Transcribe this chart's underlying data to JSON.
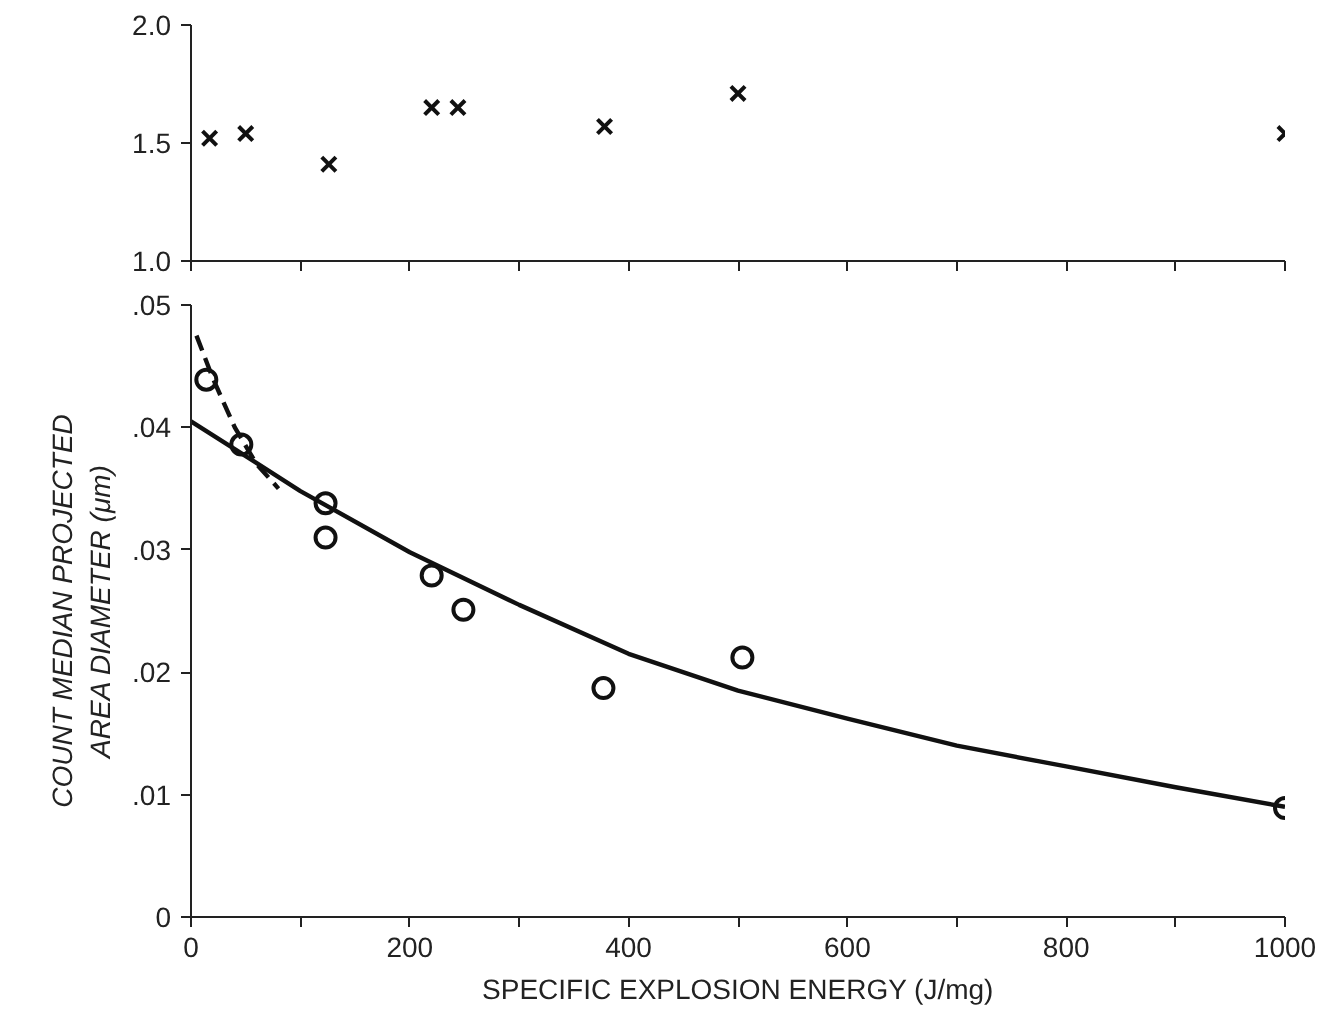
{
  "chart_data": [
    {
      "type": "scatter",
      "xlim": [
        0,
        1000
      ],
      "ylim": [
        1.0,
        2.0
      ],
      "xticks": [
        {
          "value": 0,
          "label": null
        },
        {
          "value": 100,
          "label": null
        },
        {
          "value": 200,
          "label": null
        },
        {
          "value": 300,
          "label": null
        },
        {
          "value": 400,
          "label": null
        },
        {
          "value": 500,
          "label": null
        },
        {
          "value": 600,
          "label": null
        },
        {
          "value": 700,
          "label": null
        },
        {
          "value": 800,
          "label": null
        },
        {
          "value": 900,
          "label": null
        },
        {
          "value": 1000,
          "label": null
        }
      ],
      "yticks": [
        {
          "value": 1.0,
          "label": "1.0"
        },
        {
          "value": 1.5,
          "label": "1.5"
        },
        {
          "value": 2.0,
          "label": "2.0"
        }
      ],
      "tick_labels": "y",
      "grid": false,
      "marker": "cross",
      "series": [
        {
          "color": "#111111",
          "x": [
            17,
            50,
            126,
            220,
            244,
            378,
            500,
            1000
          ],
          "values": [
            1.52,
            1.54,
            1.41,
            1.65,
            1.65,
            1.57,
            1.71,
            1.54
          ]
        }
      ]
    },
    {
      "type": "scatter",
      "xlim": [
        0,
        1000
      ],
      "ylim": [
        0,
        0.05
      ],
      "xlabel": "SPECIFIC EXPLOSION ENERGY (J/mg)",
      "ylabel": "COUNT MEDIAN PROJECTED AREA DIAMETER (μm)",
      "xticks": [
        0,
        {
          "value": 100,
          "label": null
        },
        200,
        {
          "value": 300,
          "label": null
        },
        400,
        {
          "value": 500,
          "label": null
        },
        600,
        {
          "value": 700,
          "label": null
        },
        800,
        {
          "value": 900,
          "label": null
        },
        1000
      ],
      "yticks": [
        0,
        {
          "value": 0.01,
          "label": ".01"
        },
        {
          "value": 0.02,
          "label": ".02"
        },
        {
          "value": 0.03,
          "label": ".03"
        },
        {
          "value": 0.04,
          "label": ".04"
        },
        {
          "value": 0.05,
          "label": ".05"
        }
      ],
      "grid": false,
      "marker": "circle",
      "series": [
        {
          "type": "scatter",
          "color": "#111111",
          "x": [
            14,
            46,
            123,
            123,
            220,
            249,
            377,
            504,
            1000
          ],
          "values": [
            0.0439,
            0.0386,
            0.0338,
            0.031,
            0.0279,
            0.0251,
            0.0187,
            0.0212,
            0.0089
          ]
        },
        {
          "type": "line",
          "marker": "none",
          "line_style": "solid",
          "color": "#111111",
          "x": [
            0,
            100,
            200,
            300,
            400,
            500,
            600,
            700,
            800,
            900,
            1000
          ],
          "values": [
            0.0405,
            0.0348,
            0.0298,
            0.0255,
            0.0215,
            0.0185,
            0.0162,
            0.014,
            0.0123,
            0.0106,
            0.009
          ]
        },
        {
          "type": "line",
          "marker": "none",
          "line_style": "dashed",
          "color": "#111111",
          "x": [
            5,
            20,
            40,
            60,
            80
          ],
          "values": [
            0.0475,
            0.044,
            0.04,
            0.037,
            0.035
          ]
        }
      ]
    }
  ]
}
